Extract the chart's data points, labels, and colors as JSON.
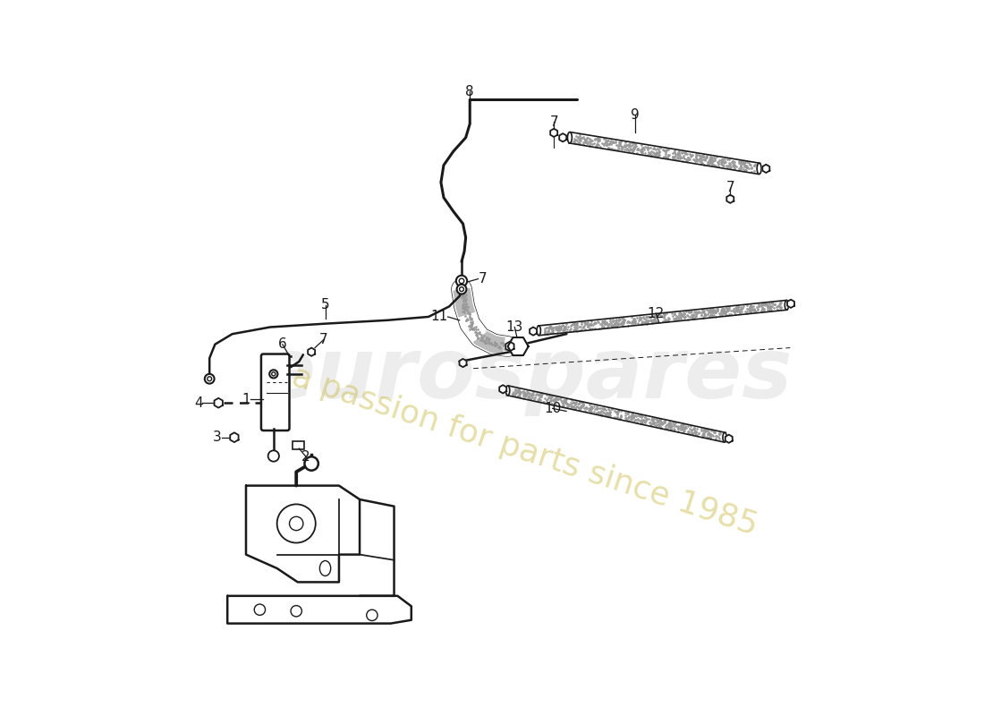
{
  "bg_color": "#ffffff",
  "line_color": "#1a1a1a",
  "watermark1": "eurospares",
  "watermark2": "a passion for parts since 1985",
  "fig_w": 11.0,
  "fig_h": 8.0,
  "dpi": 100
}
